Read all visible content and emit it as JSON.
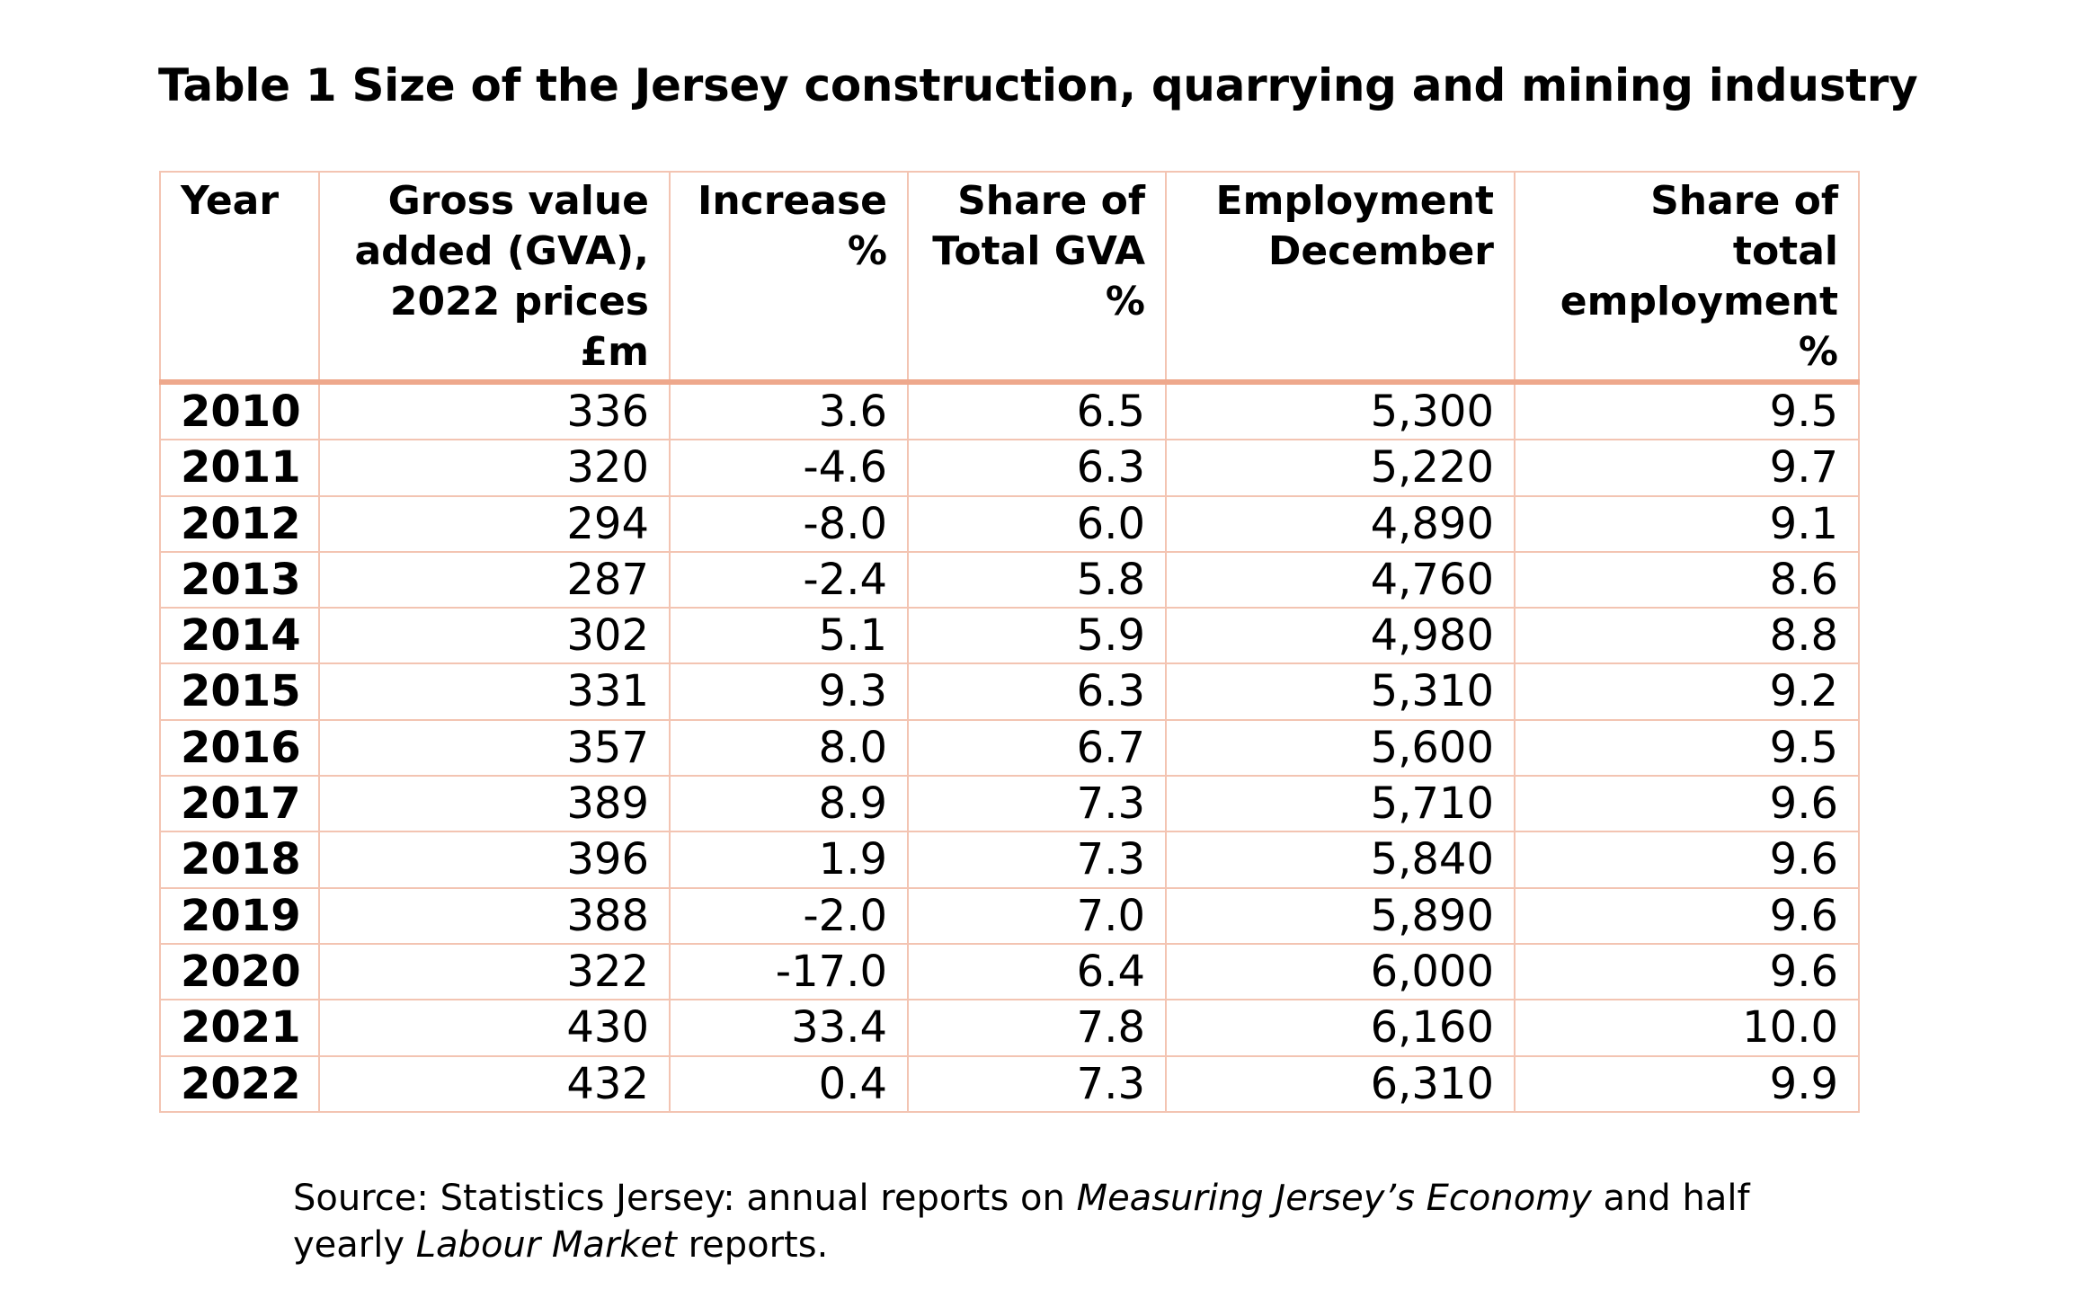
{
  "title": "Table 1 Size of the Jersey construction, quarrying and mining industry",
  "table": {
    "headers": [
      "Year",
      "Gross value added (GVA), 2022 prices £m",
      "Increase %",
      "Share of Total GVA %",
      "Employment December",
      "Share of total employment %"
    ],
    "rows": [
      [
        "2010",
        "336",
        "3.6",
        "6.5",
        "5,300",
        "9.5"
      ],
      [
        "2011",
        "320",
        "-4.6",
        "6.3",
        "5,220",
        "9.7"
      ],
      [
        "2012",
        "294",
        "-8.0",
        "6.0",
        "4,890",
        "9.1"
      ],
      [
        "2013",
        "287",
        "-2.4",
        "5.8",
        "4,760",
        "8.6"
      ],
      [
        "2014",
        "302",
        "5.1",
        "5.9",
        "4,980",
        "8.8"
      ],
      [
        "2015",
        "331",
        "9.3",
        "6.3",
        "5,310",
        "9.2"
      ],
      [
        "2016",
        "357",
        "8.0",
        "6.7",
        "5,600",
        "9.5"
      ],
      [
        "2017",
        "389",
        "8.9",
        "7.3",
        "5,710",
        "9.6"
      ],
      [
        "2018",
        "396",
        "1.9",
        "7.3",
        "5,840",
        "9.6"
      ],
      [
        "2019",
        "388",
        "-2.0",
        "7.0",
        "5,890",
        "9.6"
      ],
      [
        "2020",
        "322",
        "-17.0",
        "6.4",
        "6,000",
        "9.6"
      ],
      [
        "2021",
        "430",
        "33.4",
        "7.8",
        "6,160",
        "10.0"
      ],
      [
        "2022",
        "432",
        "0.4",
        "7.3",
        "6,310",
        "9.9"
      ]
    ]
  },
  "source": {
    "part1": "Source: Statistics Jersey: annual reports on ",
    "emph1": "Measuring Jersey’s Economy",
    "part2": " and half yearly ",
    "emph2": "Labour Market",
    "part3": " reports."
  },
  "colors": {
    "border": "#f3c4b2",
    "header_rule": "#eea88c"
  }
}
